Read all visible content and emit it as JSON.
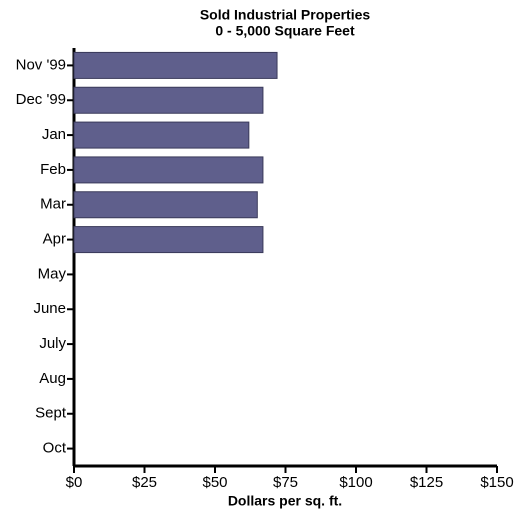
{
  "chart_data": {
    "type": "bar",
    "orientation": "horizontal",
    "title": "Sold Industrial Properties",
    "subtitle": "0 - 5,000 Square Feet",
    "x_label": "Dollars per sq. ft.",
    "categories": [
      "Nov '99",
      "Dec '99",
      "Jan",
      "Feb",
      "Mar",
      "Apr",
      "May",
      "June",
      "July",
      "Aug",
      "Sept",
      "Oct"
    ],
    "values": [
      72,
      67,
      62,
      67,
      65,
      67,
      null,
      null,
      null,
      null,
      null,
      null
    ],
    "color": "#5f5f8c",
    "xlim": [
      0,
      150
    ],
    "xticks": [
      {
        "value": 0,
        "label": "$0"
      },
      {
        "value": 25,
        "label": "$25"
      },
      {
        "value": 50,
        "label": "$50"
      },
      {
        "value": 75,
        "label": "$75"
      },
      {
        "value": 100,
        "label": "$100"
      },
      {
        "value": 125,
        "label": "$125"
      },
      {
        "value": 150,
        "label": "$150"
      }
    ],
    "grid": false
  }
}
